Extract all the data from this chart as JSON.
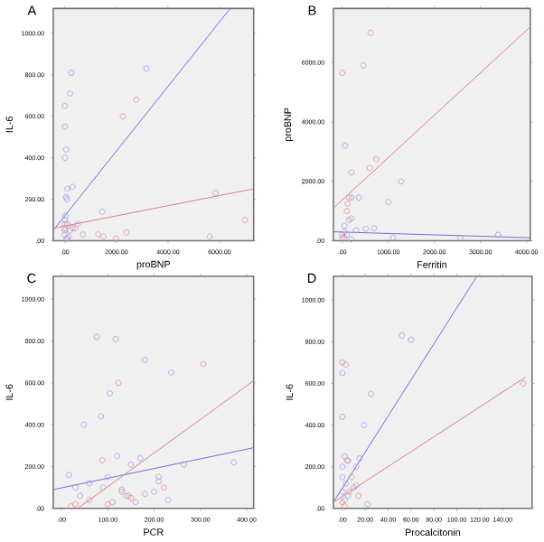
{
  "chart_data": [
    {
      "type": "scatter",
      "title": "A",
      "xlabel": "proBNP",
      "ylabel": "IL-6",
      "marker": "circle",
      "xlim": [
        -450,
        7320
      ],
      "ylim": [
        0,
        1120
      ],
      "xticks": [
        {
          "value": 0,
          "label": ".00"
        },
        {
          "value": 2000,
          "label": "2000.00"
        },
        {
          "value": 4000,
          "label": "4000.00"
        },
        {
          "value": 6000,
          "label": "6000.00"
        }
      ],
      "yticks": [
        {
          "value": 0,
          "label": ".00"
        },
        {
          "value": 200,
          "label": "200.00"
        },
        {
          "value": 400,
          "label": "400.00"
        },
        {
          "value": 600,
          "label": "600.00"
        },
        {
          "value": 800,
          "label": "800.00"
        },
        {
          "value": 1000,
          "label": "1000.00"
        }
      ],
      "series": [
        {
          "color": "#9a9aea",
          "x": [
            250,
            200,
            0,
            0,
            50,
            0,
            3160,
            100,
            300,
            50,
            80,
            1450,
            0,
            0,
            0,
            100,
            200,
            500,
            20,
            150,
            60
          ],
          "values": [
            810,
            710,
            650,
            550,
            440,
            400,
            830,
            250,
            260,
            210,
            200,
            140,
            100,
            60,
            30,
            80,
            50,
            80,
            120,
            20,
            10
          ]
        },
        {
          "color": "#e48a8a",
          "x": [
            2770,
            2250,
            5840,
            6980,
            5610,
            2390,
            1980,
            1300,
            1500,
            700,
            300,
            0,
            100,
            0,
            400
          ],
          "values": [
            680,
            600,
            230,
            100,
            20,
            40,
            10,
            30,
            20,
            30,
            60,
            50,
            10,
            80,
            60
          ]
        },
        {
          "type": "line",
          "marker": "none",
          "color": "#6a6ae0",
          "x": [
            -450,
            6410
          ],
          "values": [
            50,
            1120
          ]
        },
        {
          "type": "line",
          "marker": "none",
          "color": "#e07a7a",
          "x": [
            -450,
            7320
          ],
          "values": [
            60,
            250
          ]
        }
      ]
    },
    {
      "type": "scatter",
      "title": "B",
      "xlabel": "Ferritin",
      "ylabel": "proBNP",
      "marker": "circle",
      "xlim": [
        -190,
        4080
      ],
      "ylim": [
        0,
        7820
      ],
      "xticks": [
        {
          "value": 0,
          "label": ".00"
        },
        {
          "value": 1000,
          "label": "1000.00"
        },
        {
          "value": 2000,
          "label": "2000.00"
        },
        {
          "value": 3000,
          "label": "3000.00"
        },
        {
          "value": 4000,
          "label": "4000.00"
        }
      ],
      "yticks": [
        {
          "value": 0,
          "label": ".00"
        },
        {
          "value": 2000,
          "label": "2000.00"
        },
        {
          "value": 4000,
          "label": "4000.00"
        },
        {
          "value": 6000,
          "label": "6000.00"
        }
      ],
      "series": [
        {
          "color": "#9a9aea",
          "x": [
            60,
            360,
            200,
            510,
            690,
            1100,
            2560,
            3380,
            150,
            50,
            50,
            100,
            0,
            200
          ],
          "values": [
            3200,
            1450,
            1450,
            400,
            420,
            100,
            100,
            200,
            700,
            500,
            300,
            200,
            100,
            50
          ]
        },
        {
          "color": "#e48a8a",
          "x": [
            0,
            460,
            615,
            200,
            600,
            740,
            1280,
            1000,
            120,
            150,
            200,
            100,
            300,
            0,
            50
          ],
          "values": [
            5650,
            5900,
            7000,
            2300,
            2450,
            2750,
            2000,
            1300,
            1250,
            1450,
            750,
            1000,
            350,
            200,
            100
          ]
        },
        {
          "type": "line",
          "marker": "none",
          "color": "#6a6ae0",
          "x": [
            -190,
            4080
          ],
          "values": [
            300,
            100
          ]
        },
        {
          "type": "line",
          "marker": "none",
          "color": "#e07a7a",
          "x": [
            -190,
            4080
          ],
          "values": [
            1100,
            7200
          ]
        }
      ]
    },
    {
      "type": "scatter",
      "title": "C",
      "xlabel": "PCR",
      "ylabel": "IL-6",
      "marker": "circle",
      "xlim": [
        -18,
        415
      ],
      "ylim": [
        0,
        1110
      ],
      "xticks": [
        {
          "value": 0,
          "label": ".00"
        },
        {
          "value": 100,
          "label": "100.00"
        },
        {
          "value": 200,
          "label": "200.00"
        },
        {
          "value": 300,
          "label": "300.00"
        },
        {
          "value": 400,
          "label": "400.00"
        }
      ],
      "yticks": [
        {
          "value": 0,
          "label": ".00"
        },
        {
          "value": 200,
          "label": "200.00"
        },
        {
          "value": 400,
          "label": "400.00"
        },
        {
          "value": 600,
          "label": "600.00"
        },
        {
          "value": 800,
          "label": "800.00"
        },
        {
          "value": 1000,
          "label": "1000.00"
        }
      ],
      "series": [
        {
          "color": "#9a9aea",
          "x": [
            76,
            117,
            180,
            237,
            104,
            85,
            48,
            372,
            264,
            16,
            120,
            170,
            150,
            210,
            210,
            200,
            230,
            100,
            30,
            40,
            60,
            90,
            130,
            140,
            160,
            180
          ],
          "values": [
            820,
            810,
            710,
            650,
            550,
            440,
            400,
            220,
            210,
            160,
            250,
            240,
            210,
            150,
            130,
            80,
            40,
            150,
            100,
            60,
            120,
            100,
            90,
            60,
            30,
            70
          ]
        },
        {
          "color": "#e48a8a",
          "x": [
            123,
            306,
            88,
            221,
            130,
            145,
            100,
            60,
            20,
            30,
            110,
            150
          ],
          "values": [
            600,
            690,
            230,
            100,
            80,
            60,
            20,
            40,
            10,
            20,
            30,
            50
          ]
        },
        {
          "type": "line",
          "marker": "none",
          "color": "#6a6ae0",
          "x": [
            -18,
            415
          ],
          "values": [
            90,
            290
          ]
        },
        {
          "type": "line",
          "marker": "none",
          "color": "#e07a7a",
          "x": [
            35,
            415
          ],
          "values": [
            0,
            610
          ]
        }
      ]
    },
    {
      "type": "scatter",
      "title": "D",
      "xlabel": "Procalcitonin",
      "ylabel": "IL-6",
      "marker": "circle",
      "xlim": [
        -7.8,
        165.8
      ],
      "ylim": [
        0,
        1115
      ],
      "xticks": [
        {
          "value": 0,
          "label": ".00"
        },
        {
          "value": 20,
          "label": "20.00"
        },
        {
          "value": 40,
          "label": "40.00"
        },
        {
          "value": 60,
          "label": "60.00"
        },
        {
          "value": 80,
          "label": "80.00"
        },
        {
          "value": 100,
          "label": "100.00"
        },
        {
          "value": 120,
          "label": "120.00"
        },
        {
          "value": 140,
          "label": "140.00"
        }
      ],
      "yticks": [
        {
          "value": 0,
          "label": ".00"
        },
        {
          "value": 200,
          "label": "200.00"
        },
        {
          "value": 400,
          "label": "400.00"
        },
        {
          "value": 600,
          "label": "600.00"
        },
        {
          "value": 800,
          "label": "800.00"
        },
        {
          "value": 1000,
          "label": "1000.00"
        }
      ],
      "series": [
        {
          "color": "#9a9aea",
          "x": [
            0,
            0,
            0,
            52,
            60,
            25,
            19,
            2,
            5,
            0,
            12,
            15,
            22,
            10,
            0,
            3,
            0,
            5,
            2
          ],
          "values": [
            700,
            650,
            440,
            830,
            810,
            550,
            400,
            250,
            230,
            200,
            200,
            240,
            20,
            100,
            150,
            120,
            80,
            60,
            40
          ]
        },
        {
          "color": "#e48a8a",
          "x": [
            3,
            158,
            4,
            8,
            12,
            14,
            0,
            2,
            6
          ],
          "values": [
            690,
            600,
            230,
            150,
            110,
            60,
            30,
            10,
            80
          ]
        },
        {
          "type": "line",
          "marker": "none",
          "color": "#6a6ae0",
          "x": [
            -7.8,
            117
          ],
          "values": [
            30,
            1110
          ]
        },
        {
          "type": "line",
          "marker": "none",
          "color": "#e07a7a",
          "x": [
            -7.8,
            160
          ],
          "values": [
            30,
            630
          ]
        }
      ]
    }
  ]
}
